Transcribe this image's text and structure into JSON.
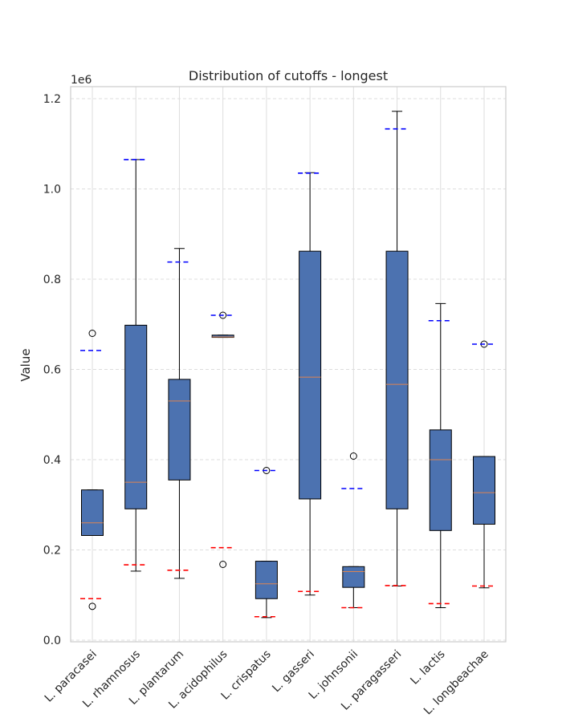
{
  "chart_data": {
    "type": "boxplot",
    "title": "Distribution of cutoffs - longest",
    "xlabel": "",
    "ylabel": "Value",
    "y_multiplier_label": "1e6",
    "ylim": [
      0,
      1.22
    ],
    "yticks": [
      0.0,
      0.2,
      0.4,
      0.6,
      0.8,
      1.0,
      1.2
    ],
    "ytick_labels": [
      "0.0",
      "0.2",
      "0.4",
      "0.6",
      "0.8",
      "1.0",
      "1.2"
    ],
    "grid": true,
    "categories": [
      "L. paracasei",
      "L. rhamnosus",
      "L. plantarum",
      "L. acidophilus",
      "L. crispatus",
      "L. gasseri",
      "L. johnsonii",
      "L. paragasseri",
      "L. lactis",
      "L. longbeachae"
    ],
    "category_labels": [
      "L. paracasei",
      "L. rhamnosus",
      "L. plantarum",
      "L. acidophilus",
      "L. crispatus",
      "L. gasseri",
      "L. johnsonii",
      "L. paragasseri",
      "L. lactis",
      "L. longbeachae"
    ],
    "boxes": [
      {
        "whisker_low": 0.232,
        "q1": 0.232,
        "median": 0.26,
        "q3": 0.333,
        "whisker_high": 0.333,
        "outliers": [
          0.68,
          0.075
        ],
        "red_line": 0.092,
        "blue_line": 0.642
      },
      {
        "whisker_low": 0.153,
        "q1": 0.291,
        "median": 0.35,
        "q3": 0.698,
        "whisker_high": 1.065,
        "outliers": [],
        "red_line": 0.167,
        "blue_line": 1.065
      },
      {
        "whisker_low": 0.137,
        "q1": 0.355,
        "median": 0.53,
        "q3": 0.578,
        "whisker_high": 0.868,
        "outliers": [],
        "red_line": 0.155,
        "blue_line": 0.838
      },
      {
        "whisker_low": 0.671,
        "q1": 0.671,
        "median": 0.672,
        "q3": 0.676,
        "whisker_high": 0.676,
        "outliers": [
          0.72,
          0.168
        ],
        "red_line": 0.205,
        "blue_line": 0.72
      },
      {
        "whisker_low": 0.05,
        "q1": 0.092,
        "median": 0.125,
        "q3": 0.175,
        "whisker_high": 0.175,
        "outliers": [
          0.376
        ],
        "red_line": 0.052,
        "blue_line": 0.376
      },
      {
        "whisker_low": 0.1,
        "q1": 0.313,
        "median": 0.583,
        "q3": 0.862,
        "whisker_high": 1.036,
        "outliers": [],
        "red_line": 0.108,
        "blue_line": 1.035
      },
      {
        "whisker_low": 0.072,
        "q1": 0.117,
        "median": 0.152,
        "q3": 0.163,
        "whisker_high": 0.163,
        "outliers": [
          0.408
        ],
        "red_line": 0.072,
        "blue_line": 0.336
      },
      {
        "whisker_low": 0.12,
        "q1": 0.291,
        "median": 0.567,
        "q3": 0.862,
        "whisker_high": 1.172,
        "outliers": [],
        "red_line": 0.121,
        "blue_line": 1.133
      },
      {
        "whisker_low": 0.072,
        "q1": 0.243,
        "median": 0.4,
        "q3": 0.466,
        "whisker_high": 0.746,
        "outliers": [],
        "red_line": 0.081,
        "blue_line": 0.708
      },
      {
        "whisker_low": 0.116,
        "q1": 0.257,
        "median": 0.327,
        "q3": 0.407,
        "whisker_high": 0.407,
        "outliers": [
          0.656
        ],
        "red_line": 0.12,
        "blue_line": 0.656
      }
    ],
    "colors": {
      "box_fill": "#4c72b0",
      "median": "#dd8452",
      "red_line": "#ff0000",
      "blue_line": "#0000ff",
      "grid": "#dddddd",
      "frame": "#cccccc",
      "text": "#262626"
    }
  }
}
